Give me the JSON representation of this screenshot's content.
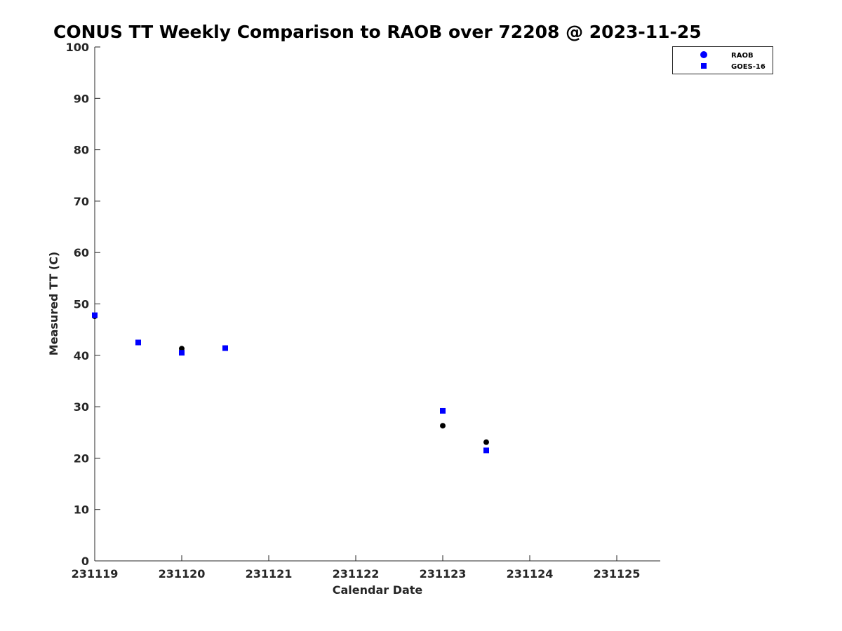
{
  "chart_data": {
    "type": "scatter",
    "title": "CONUS TT Weekly Comparison to RAOB over 72208 @ 2023-11-25",
    "xlabel": "Calendar Date",
    "ylabel": "Measured TT (C)",
    "x_tick_labels": [
      "231119",
      "231120",
      "231121",
      "231122",
      "231123",
      "231124",
      "231125"
    ],
    "xlim": [
      "2023-11-19",
      "2023-11-25 12:00"
    ],
    "ylim": [
      0,
      100
    ],
    "y_ticks": [
      0,
      10,
      20,
      30,
      40,
      50,
      60,
      70,
      80,
      90,
      100
    ],
    "grid": false,
    "legend_position": "top-right",
    "series": [
      {
        "name": "RAOB",
        "marker": "circle",
        "color": "#000000",
        "legend_color": "#0000ff",
        "points": [
          {
            "x": "2023-11-19 00:00",
            "y": 47.6
          },
          {
            "x": "2023-11-19 12:00",
            "y": 42.5
          },
          {
            "x": "2023-11-20 00:00",
            "y": 41.3
          },
          {
            "x": "2023-11-20 12:00",
            "y": 41.4
          },
          {
            "x": "2023-11-23 00:00",
            "y": 26.3
          },
          {
            "x": "2023-11-23 12:00",
            "y": 23.1
          }
        ]
      },
      {
        "name": "GOES-16",
        "marker": "square",
        "color": "#0000ff",
        "legend_color": "#0000ff",
        "points": [
          {
            "x": "2023-11-19 00:00",
            "y": 47.8
          },
          {
            "x": "2023-11-19 12:00",
            "y": 42.5
          },
          {
            "x": "2023-11-20 00:00",
            "y": 40.5
          },
          {
            "x": "2023-11-20 12:00",
            "y": 41.4
          },
          {
            "x": "2023-11-23 00:00",
            "y": 29.2
          },
          {
            "x": "2023-11-23 12:00",
            "y": 21.5
          }
        ]
      }
    ]
  }
}
